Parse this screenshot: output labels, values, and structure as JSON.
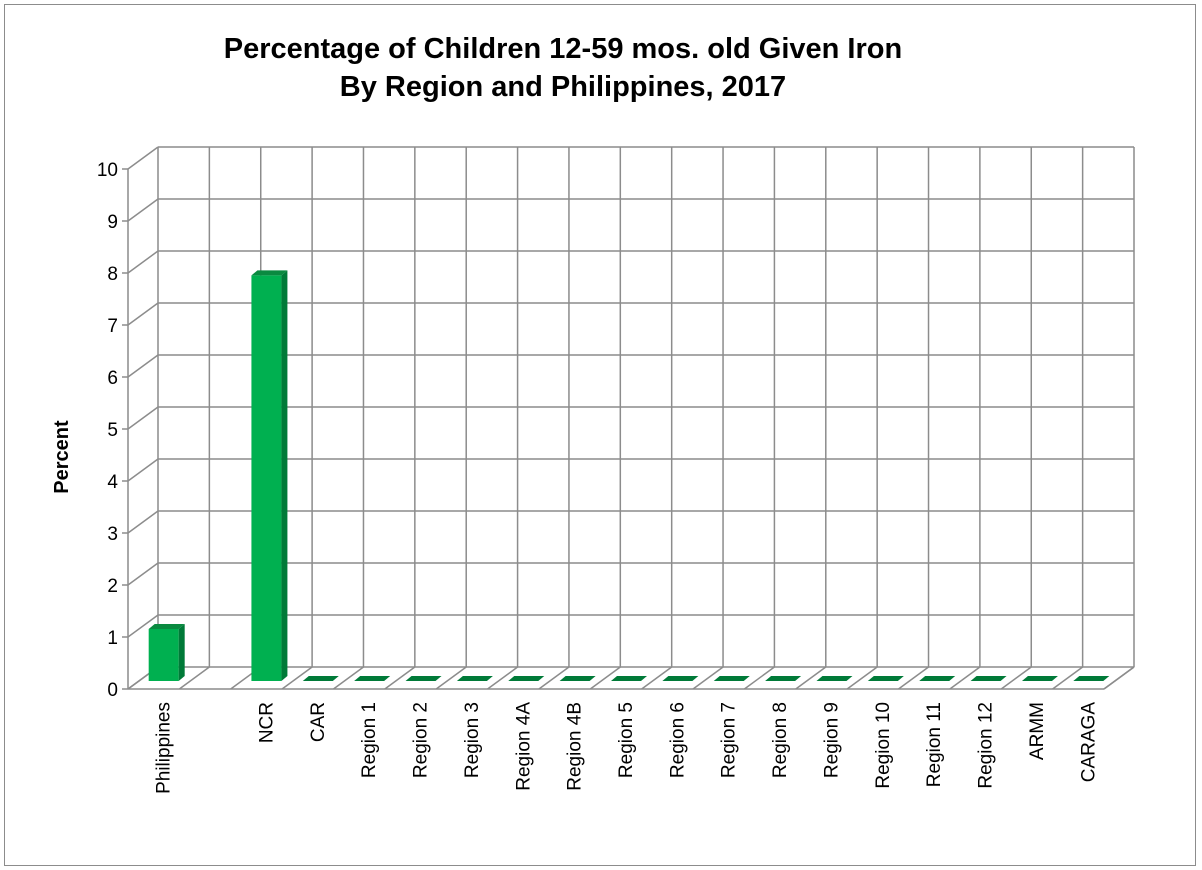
{
  "chart_data": {
    "type": "bar",
    "title": [
      "Percentage of Children 12-59 mos. old Given Iron",
      "By Region and Philippines, 2017"
    ],
    "ylabel": "Percent",
    "xlabel": "",
    "ylim": [
      0,
      10
    ],
    "yticks": [
      "0",
      "1",
      "2",
      "3",
      "4",
      "5",
      "6",
      "7",
      "8",
      "9",
      "10"
    ],
    "categories": [
      "Philippines",
      "",
      "NCR",
      "CAR",
      "Region 1",
      "Region 2",
      "Region 3",
      "Region 4A",
      "Region 4B",
      "Region 5",
      "Region 6",
      "Region 7",
      "Region 8",
      "Region 9",
      "Region 10",
      "Region 11",
      "Region 12",
      "ARMM",
      "CARAGA"
    ],
    "values": [
      1.0,
      null,
      7.8,
      0,
      0,
      0,
      0,
      0,
      0,
      0,
      0,
      0,
      0,
      0,
      0,
      0,
      0,
      0,
      0
    ],
    "grid": true,
    "legend": "none",
    "colors": {
      "bar_front": "#00b050",
      "bar_side": "#007a38",
      "bar_top": "#0a8a40",
      "grid": "#8c8c8c"
    }
  }
}
